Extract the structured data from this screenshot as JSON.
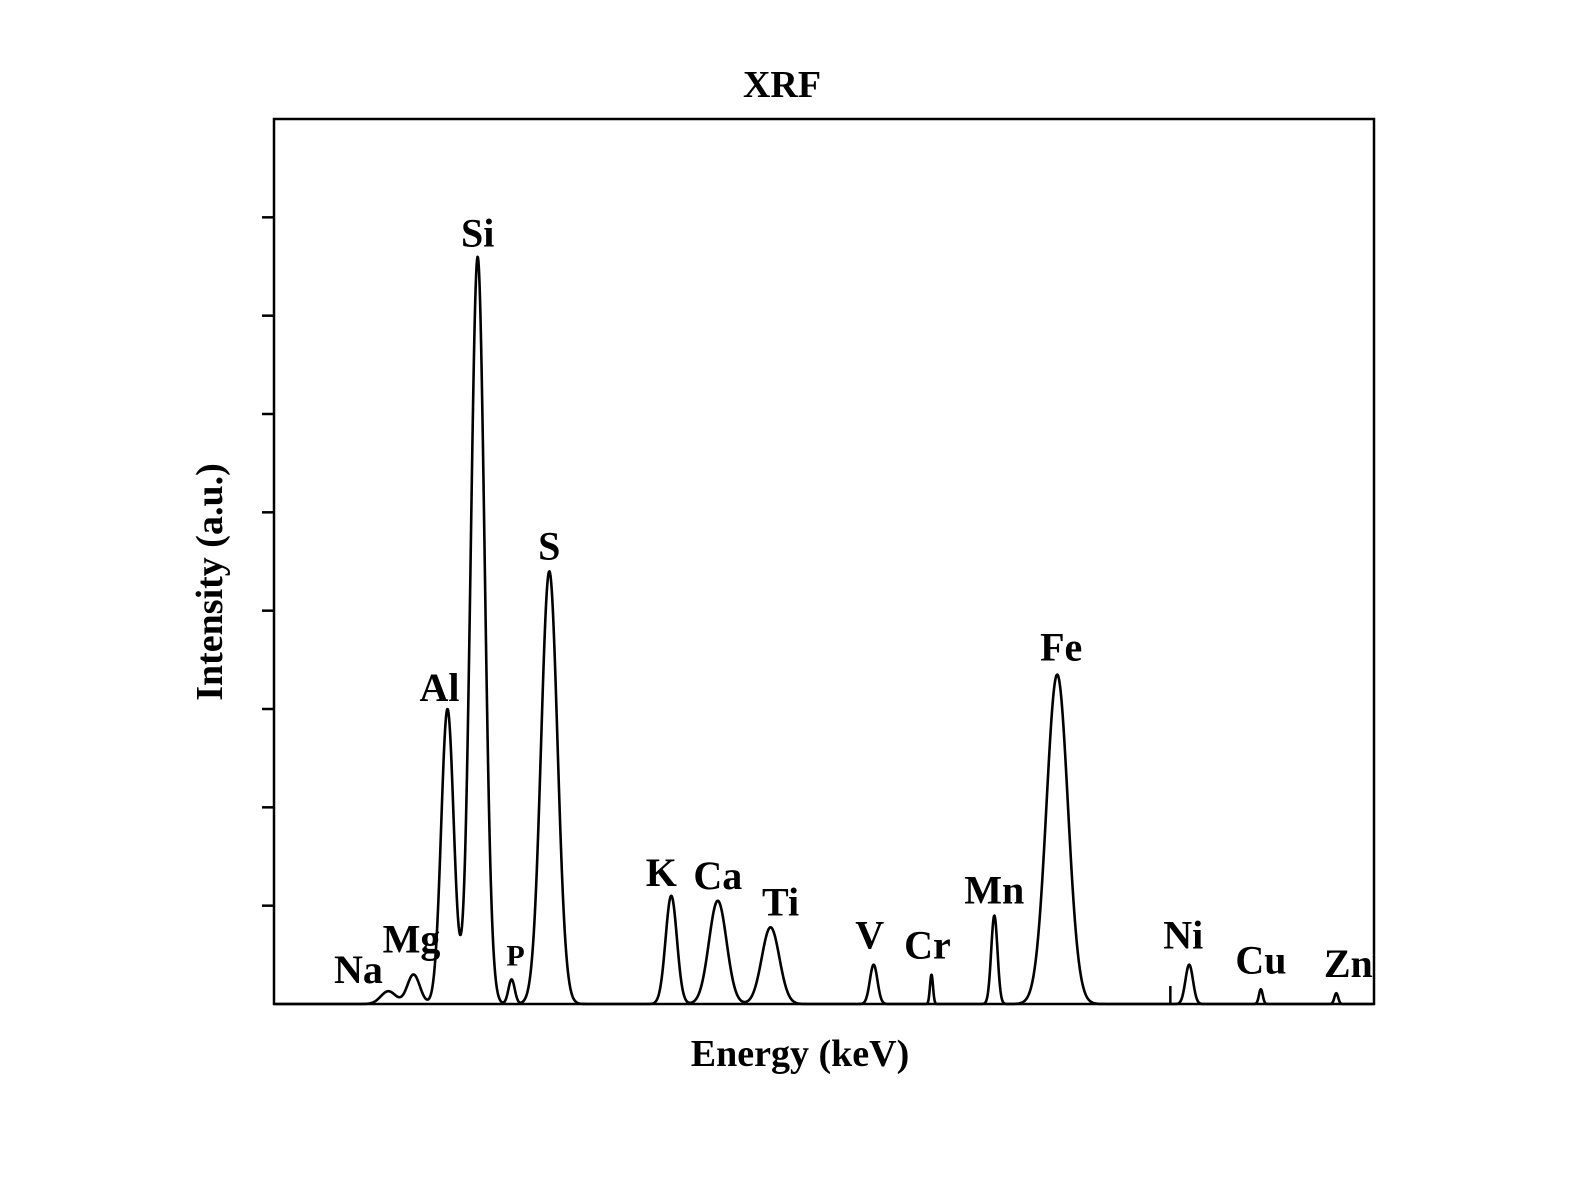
{
  "chart_data": {
    "type": "line",
    "title": "XRF",
    "xlabel": "Energy (keV)",
    "ylabel": "Intensity (a.u.)",
    "xlim": [
      0.5,
      9.25
    ],
    "ylim": [
      0,
      9
    ],
    "x_tick_labels_shown": false,
    "y_tick_labels_shown": false,
    "y_ticks": [
      1,
      2,
      3,
      4,
      5,
      6,
      7,
      8
    ],
    "grid": false,
    "legend": "none",
    "line_color": "#000000",
    "peaks": [
      {
        "label": "Na",
        "x": 1.41,
        "y": 0.13,
        "width": 0.06
      },
      {
        "label": "Mg",
        "x": 1.61,
        "y": 0.3,
        "width": 0.05
      },
      {
        "label": "Al",
        "x": 1.88,
        "y": 3.0,
        "width": 0.05
      },
      {
        "label": "Si",
        "x": 2.12,
        "y": 7.6,
        "width": 0.055
      },
      {
        "label": "P",
        "x": 2.39,
        "y": 0.25,
        "width": 0.025
      },
      {
        "label": "S",
        "x": 2.69,
        "y": 4.4,
        "width": 0.065
      },
      {
        "label": "K",
        "x": 3.66,
        "y": 1.1,
        "width": 0.045
      },
      {
        "label": "Ca",
        "x": 4.03,
        "y": 1.05,
        "width": 0.07
      },
      {
        "label": "Ti",
        "x": 4.45,
        "y": 0.78,
        "width": 0.07
      },
      {
        "label": "V",
        "x": 5.27,
        "y": 0.4,
        "width": 0.03
      },
      {
        "label": "Cr",
        "x": 5.73,
        "y": 0.3,
        "width": 0.012
      },
      {
        "label": "Mn",
        "x": 6.23,
        "y": 0.9,
        "width": 0.025
      },
      {
        "label": "Fe",
        "x": 6.73,
        "y": 3.35,
        "width": 0.085
      },
      {
        "label": "Ni",
        "x": 7.78,
        "y": 0.4,
        "width": 0.03
      },
      {
        "label": "Cu",
        "x": 8.35,
        "y": 0.15,
        "width": 0.015
      },
      {
        "label": "Zn",
        "x": 8.95,
        "y": 0.11,
        "width": 0.015
      }
    ]
  }
}
